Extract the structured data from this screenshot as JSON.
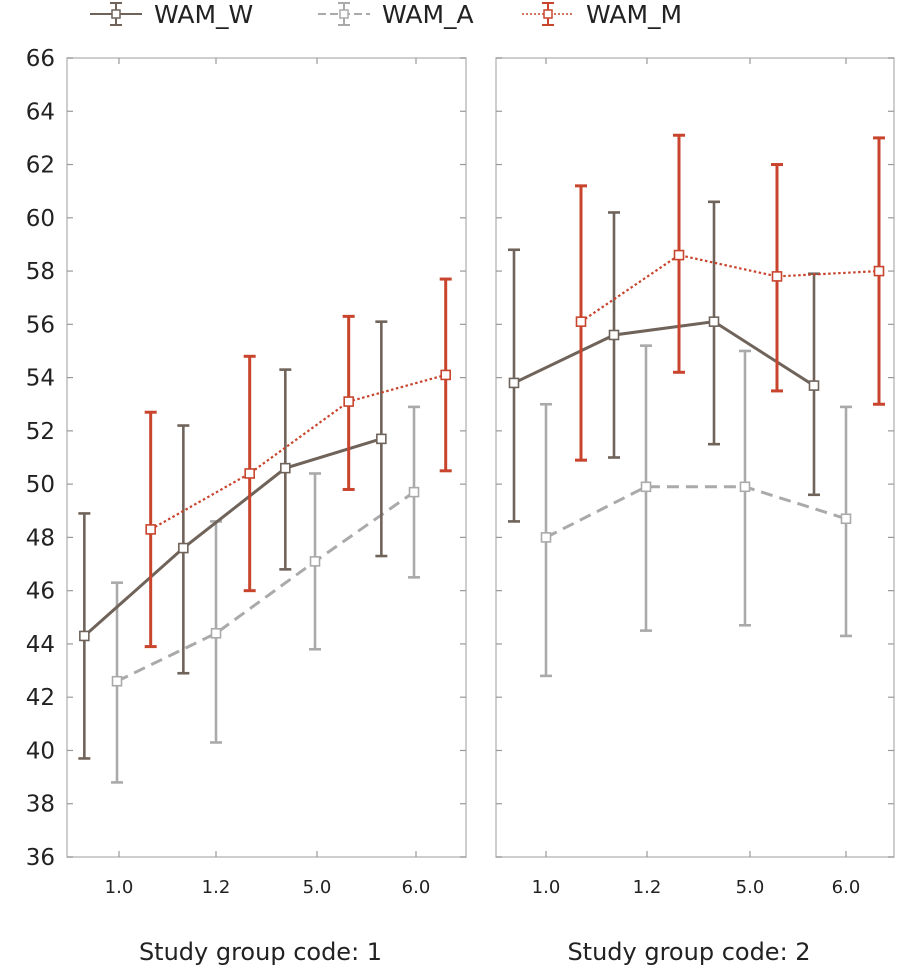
{
  "chart_data": {
    "type": "line",
    "y_ticks": [
      36,
      38,
      40,
      42,
      44,
      46,
      48,
      50,
      52,
      54,
      56,
      58,
      60,
      62,
      64,
      66
    ],
    "ylim": [
      36,
      66
    ],
    "categories": [
      "1.0",
      "1.2",
      "5.0",
      "6.0"
    ],
    "grid": false,
    "legend_position": "top",
    "error_bars": true,
    "legend": [
      {
        "name": "WAM_W",
        "color": "#6f635a",
        "style": "solid"
      },
      {
        "name": "WAM_A",
        "color": "#aaaaaa",
        "style": "dashed"
      },
      {
        "name": "WAM_M",
        "color": "#c8442c",
        "style": "dotted"
      }
    ],
    "panels": [
      {
        "title": "Study group code: 1",
        "series": [
          {
            "name": "WAM_W",
            "x": [
              0.65,
              1.65,
              2.68,
              3.65
            ],
            "y": [
              44.3,
              47.6,
              50.6,
              51.7
            ],
            "lo": [
              39.7,
              42.9,
              46.8,
              47.3
            ],
            "hi": [
              48.9,
              52.2,
              54.3,
              56.1
            ]
          },
          {
            "name": "WAM_A",
            "x": [
              0.98,
              1.98,
              2.98,
              3.98
            ],
            "y": [
              42.6,
              44.4,
              47.1,
              49.7
            ],
            "lo": [
              38.8,
              40.3,
              43.8,
              46.5
            ],
            "hi": [
              46.3,
              48.6,
              50.4,
              52.9
            ]
          },
          {
            "name": "WAM_M",
            "x": [
              1.32,
              2.32,
              3.32,
              4.3
            ],
            "y": [
              48.3,
              50.4,
              53.1,
              54.1
            ],
            "lo": [
              43.9,
              46.0,
              49.8,
              50.5
            ],
            "hi": [
              52.7,
              54.8,
              56.3,
              57.7
            ]
          }
        ]
      },
      {
        "title": "Study group code: 2",
        "series": [
          {
            "name": "WAM_W",
            "x": [
              0.68,
              1.68,
              2.68,
              3.68
            ],
            "y": [
              53.8,
              55.6,
              56.1,
              53.7
            ],
            "lo": [
              48.6,
              51.0,
              51.5,
              49.6
            ],
            "hi": [
              58.8,
              60.2,
              60.6,
              57.9
            ]
          },
          {
            "name": "WAM_A",
            "x": [
              1.0,
              2.0,
              2.99,
              4.0
            ],
            "y": [
              48.0,
              49.9,
              49.9,
              48.7
            ],
            "lo": [
              42.8,
              44.5,
              44.7,
              44.3
            ],
            "hi": [
              53.0,
              55.2,
              55.0,
              52.9
            ]
          },
          {
            "name": "WAM_M",
            "x": [
              1.35,
              2.33,
              3.31,
              4.33
            ],
            "y": [
              56.1,
              58.6,
              57.8,
              58.0
            ],
            "lo": [
              50.9,
              54.2,
              53.5,
              53.0
            ],
            "hi": [
              61.2,
              63.1,
              62.0,
              63.0
            ]
          }
        ]
      }
    ]
  }
}
